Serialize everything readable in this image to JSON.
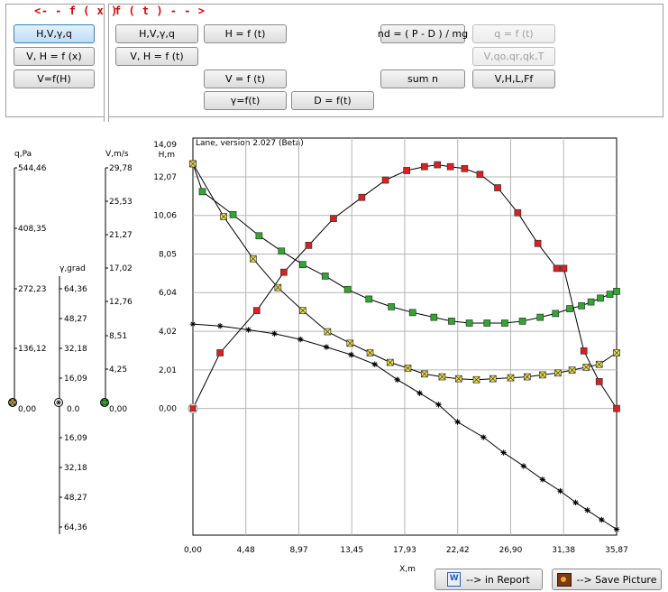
{
  "left_group": {
    "label": "<- - f ( x )",
    "buttons": [
      "H,V,γ,q",
      "V, H = f (x)",
      "V=f(H)"
    ]
  },
  "right_group": {
    "label": "f ( t ) - - >",
    "buttons": {
      "hvgq": "H,V,γ,q",
      "h_ft": "H = f (t)",
      "vh_ft": "V, H = f (t)",
      "v_ft": "V = f (t)",
      "g_ft": "γ=f(t)",
      "d_ft": "D = f(t)",
      "nd": "nd = ( P - D ) / mg",
      "sum_n": "sum n",
      "q_ft": "q = f (t)",
      "vq_ft": "V,qo,qr,qk,T",
      "vhlf": "V,H,L,Ff"
    }
  },
  "scales": {
    "q": {
      "title": "q,Pa",
      "ticks": [
        "544,46",
        "408,35",
        "272,23",
        "136,12",
        "0,00"
      ]
    },
    "gamma": {
      "title": "γ,grad",
      "ticks": [
        "64,36",
        "48,27",
        "32,18",
        "16,09",
        "0.0",
        "16,09",
        "32,18",
        "48,27",
        "64,36"
      ]
    },
    "v": {
      "title": "V,m/s",
      "ticks": [
        "29,78",
        "25,53",
        "21,27",
        "17,02",
        "12,76",
        "8,51",
        "4,25",
        "0,00"
      ]
    }
  },
  "chart_data": {
    "type": "line",
    "title": "Lane, version 2.027 (Beta)",
    "ylabel": "H,m",
    "xlabel": "X,m",
    "y_ticks": [
      "14,09",
      "12,07",
      "10,06",
      "8,05",
      "6,04",
      "4,02",
      "2,01",
      "0,00"
    ],
    "x_ticks": [
      "0,00",
      "4,48",
      "8,97",
      "13,45",
      "17,93",
      "22,42",
      "26,90",
      "31,38",
      "35,87"
    ],
    "xlim": [
      0,
      35.87
    ],
    "ylim": [
      -6.6,
      14.09
    ],
    "grid": true,
    "series": [
      {
        "marker": "red-square",
        "color": "#dd1f1f",
        "x": [
          0.0,
          2.3,
          5.4,
          7.7,
          9.8,
          11.9,
          14.3,
          16.3,
          18.1,
          19.6,
          20.7,
          21.8,
          23.0,
          24.3,
          25.8,
          27.5,
          29.2,
          30.8,
          31.4,
          33.1,
          34.4,
          35.87
        ],
        "y": [
          0.0,
          2.9,
          5.1,
          7.1,
          8.5,
          9.9,
          11.0,
          11.9,
          12.4,
          12.6,
          12.7,
          12.6,
          12.5,
          12.2,
          11.5,
          10.2,
          8.6,
          7.3,
          7.3,
          3.0,
          1.4,
          0.0
        ]
      },
      {
        "marker": "green-square",
        "color": "#2fa82f",
        "x": [
          0.0,
          0.8,
          3.4,
          5.6,
          7.5,
          9.3,
          11.2,
          13.1,
          14.9,
          16.8,
          18.6,
          20.4,
          21.9,
          23.4,
          24.9,
          26.4,
          27.9,
          29.4,
          30.7,
          31.9,
          32.9,
          33.7,
          34.5,
          35.3,
          35.87
        ],
        "y": [
          12.75,
          11.3,
          10.1,
          9.0,
          8.2,
          7.5,
          6.9,
          6.2,
          5.7,
          5.3,
          5.0,
          4.75,
          4.55,
          4.45,
          4.45,
          4.45,
          4.55,
          4.75,
          4.95,
          5.2,
          5.35,
          5.55,
          5.75,
          5.95,
          6.1
        ]
      },
      {
        "marker": "yellow-cross-square",
        "color": "#f2e24a",
        "x": [
          0.0,
          2.6,
          5.1,
          7.2,
          9.3,
          11.4,
          13.3,
          15.0,
          16.7,
          18.2,
          19.6,
          21.1,
          22.5,
          24.0,
          25.4,
          26.9,
          28.3,
          29.6,
          30.9,
          32.1,
          33.3,
          34.4,
          35.87
        ],
        "y": [
          12.75,
          10.0,
          7.8,
          6.3,
          5.1,
          4.0,
          3.4,
          2.9,
          2.4,
          2.1,
          1.8,
          1.65,
          1.55,
          1.5,
          1.55,
          1.6,
          1.65,
          1.75,
          1.85,
          2.0,
          2.15,
          2.3,
          2.9
        ]
      },
      {
        "marker": "star",
        "color": "#000000",
        "x": [
          0.0,
          2.3,
          4.7,
          6.9,
          9.1,
          11.3,
          13.4,
          15.4,
          17.3,
          19.2,
          20.8,
          22.4,
          24.6,
          26.3,
          28.0,
          29.6,
          31.1,
          32.4,
          33.4,
          34.6,
          35.87
        ],
        "y": [
          4.4,
          4.3,
          4.1,
          3.9,
          3.6,
          3.2,
          2.8,
          2.3,
          1.5,
          0.8,
          0.2,
          -0.7,
          -1.5,
          -2.3,
          -3.0,
          -3.7,
          -4.3,
          -4.9,
          -5.3,
          -5.8,
          -6.3
        ]
      }
    ]
  },
  "bottom": {
    "report_btn": "--> in Report",
    "save_btn": "--> Save Picture"
  }
}
